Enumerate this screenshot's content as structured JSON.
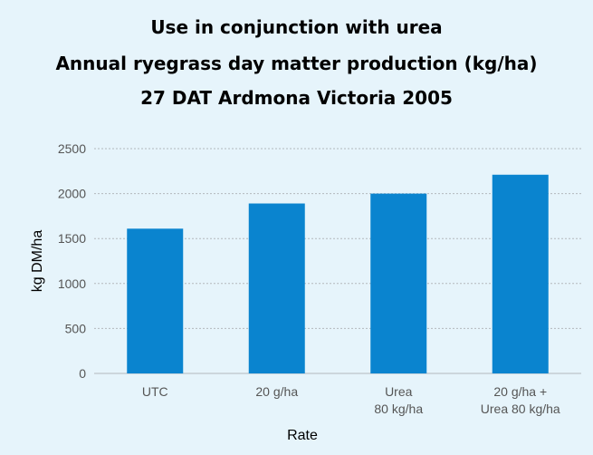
{
  "chart_data": {
    "type": "bar",
    "title_lines": [
      "Use in conjunction with urea",
      "Annual ryegrass day matter production (kg/ha)",
      "27 DAT Ardmona Victoria 2005"
    ],
    "categories": [
      [
        "UTC"
      ],
      [
        "20 g/ha"
      ],
      [
        "Urea",
        "80 kg/ha"
      ],
      [
        "20 g/ha +",
        "Urea 80 kg/ha"
      ]
    ],
    "values": [
      1610,
      1890,
      2000,
      2210
    ],
    "xlabel": "Rate",
    "ylabel": "kg DM/ha",
    "ylim": [
      0,
      2500
    ],
    "yticks": [
      "0",
      "500",
      "1000",
      "1500",
      "2000",
      "2500"
    ],
    "grid": true,
    "bar_color": "#0a84cf",
    "grid_color": "#b3b8bc",
    "background": "#e6f4fb"
  }
}
